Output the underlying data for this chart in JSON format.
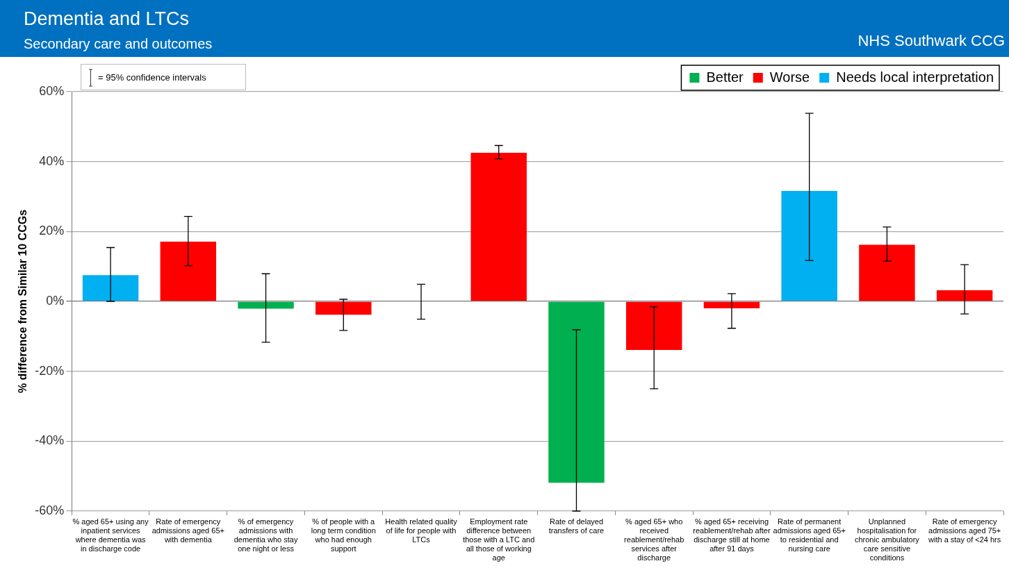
{
  "chart_data": {
    "type": "bar",
    "title": "Dementia and LTCs",
    "subtitle": "Secondary care and outcomes",
    "ylabel": "% difference from Similar 10 CCGs",
    "annotations": [
      "NHS Southwark CCG",
      "= 95% confidence intervals"
    ],
    "categories": [
      "% aged 65+ using any inpatient services where dementia was in discharge code",
      "Rate of emergency admissions aged 65+ with dementia",
      "% of emergency admissions with dementia who stay one night or less",
      "% of people with a long term condition who had enough support",
      "Health related quality of life for people with LTCs",
      "Employment rate difference between those with a LTC and all those of working age",
      "Rate of delayed transfers of care",
      "% aged 65+ who received reablement/rehab services after discharge",
      "% aged 65+ receiving reablement/rehab after discharge still at home after 91 days",
      "Rate of permanent admissions aged 65+ to residential and nursing care",
      "Unplanned hospitalisation for chronic ambulatory care sensitive conditions",
      "Rate of emergency admissions aged 75+ with a stay of <24 hrs"
    ],
    "stacked": true,
    "series": [
      {
        "name": "Better",
        "color": "#00b050",
        "values": [
          null,
          null,
          -2.1,
          null,
          null,
          null,
          -51.9,
          null,
          null,
          null,
          null,
          null
        ],
        "errors": [
          null,
          null,
          [
            -11.7,
            7.9
          ],
          null,
          null,
          null,
          [
            -60,
            -8.1
          ],
          null,
          null,
          null,
          null,
          null
        ]
      },
      {
        "name": "Worse",
        "color": "#ff0000",
        "values": [
          null,
          17.1,
          null,
          -3.8,
          0,
          42.5,
          null,
          -13.9,
          -2,
          null,
          16.2,
          3.2
        ],
        "errors": [
          null,
          [
            10.2,
            24.3
          ],
          null,
          [
            -8.3,
            0.6
          ],
          [
            -5.1,
            4.9
          ],
          [
            40.8,
            44.6
          ],
          null,
          [
            -25,
            -1.5
          ],
          [
            -7.7,
            2.2
          ],
          null,
          [
            11.5,
            21.3
          ],
          [
            -3.6,
            10.5
          ]
        ]
      },
      {
        "name": "Needs local interpretation",
        "color": "#00b0f0",
        "values": [
          7.5,
          null,
          null,
          null,
          null,
          null,
          null,
          null,
          null,
          31.6,
          null,
          null
        ],
        "errors": [
          [
            0,
            15.4
          ],
          null,
          null,
          null,
          null,
          null,
          null,
          null,
          null,
          [
            11.7,
            53.8
          ],
          null,
          null
        ]
      }
    ],
    "ylim": [
      -60,
      60
    ],
    "yticks": [
      {
        "value": -60,
        "label": "-60%"
      },
      {
        "value": -40,
        "label": "-40%"
      },
      {
        "value": -20,
        "label": "-20%"
      },
      {
        "value": 0,
        "label": "0%"
      },
      {
        "value": 20,
        "label": "20%"
      },
      {
        "value": 40,
        "label": "40%"
      },
      {
        "value": 60,
        "label": "60%"
      }
    ],
    "grid": "y",
    "legend": "top right"
  }
}
